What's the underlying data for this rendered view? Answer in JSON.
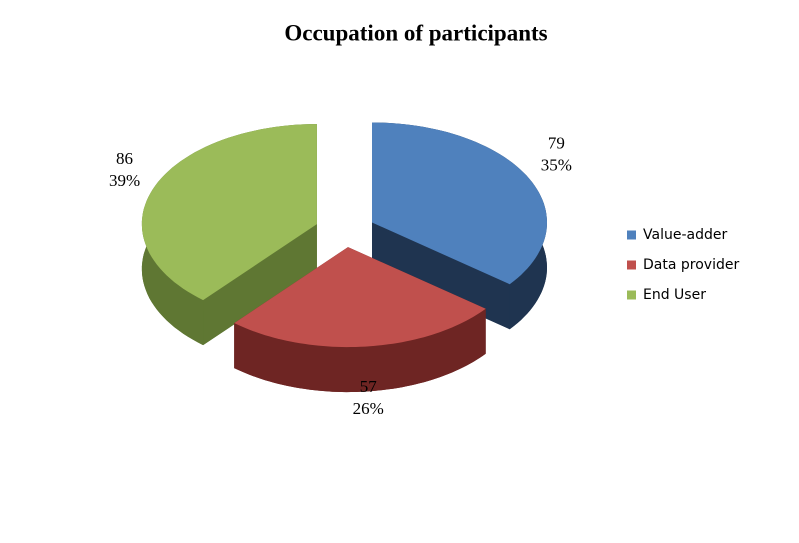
{
  "chart_data": {
    "type": "pie3d",
    "title": "Occupation of participants",
    "categories": [
      "Value-adder",
      "Data provider",
      "End User"
    ],
    "values": [
      79,
      57,
      86
    ],
    "percent_labels": [
      "35%",
      "26%",
      "39%"
    ],
    "colors": [
      "#4f81bd",
      "#c0504d",
      "#9bbb59"
    ],
    "side_colors": [
      "#1f3450",
      "#6e2523",
      "#5f7733"
    ],
    "legend": "right"
  }
}
